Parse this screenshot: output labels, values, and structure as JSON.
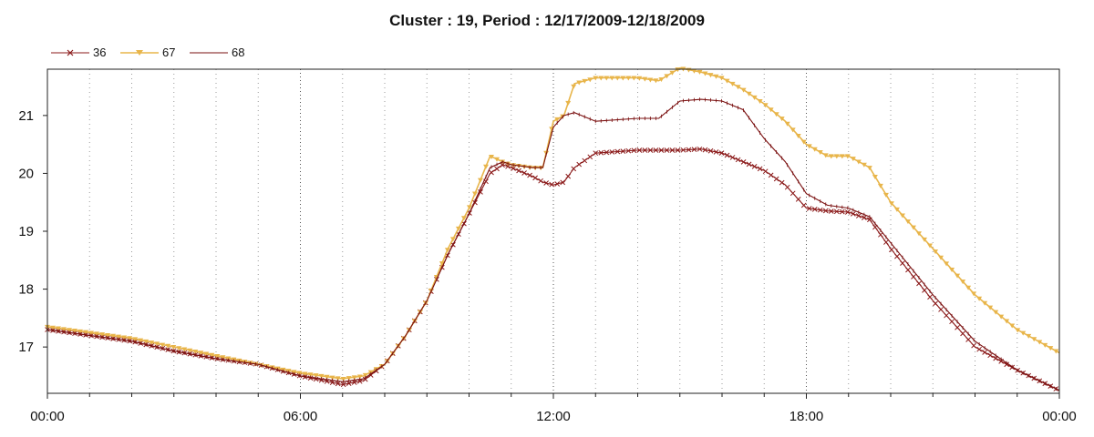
{
  "chart_data": {
    "type": "line",
    "title": "Cluster : 19, Period : 12/17/2009-12/18/2009",
    "xlabel": "",
    "ylabel": "",
    "x_unit": "hours",
    "xlim": [
      0,
      24
    ],
    "ylim": [
      16.2,
      21.8
    ],
    "x_ticks": [
      0,
      6,
      12,
      18,
      24
    ],
    "x_tick_labels": [
      "00:00",
      "06:00",
      "12:00",
      "18:00",
      "00:00"
    ],
    "y_ticks": [
      17,
      18,
      19,
      20,
      21
    ],
    "y_tick_labels": [
      "17",
      "18",
      "19",
      "20",
      "21"
    ],
    "grid": "vertical dotted lines at each hour",
    "legend_position": "top-left",
    "series": [
      {
        "name": "36",
        "color": "#8b1a1a",
        "marker": "x",
        "points": [
          [
            0,
            17.3
          ],
          [
            1,
            17.2
          ],
          [
            2,
            17.1
          ],
          [
            3,
            16.93
          ],
          [
            4,
            16.8
          ],
          [
            5,
            16.7
          ],
          [
            6,
            16.5
          ],
          [
            7,
            16.35
          ],
          [
            7.5,
            16.42
          ],
          [
            8,
            16.7
          ],
          [
            8.5,
            17.2
          ],
          [
            9,
            17.8
          ],
          [
            9.5,
            18.6
          ],
          [
            10,
            19.3
          ],
          [
            10.5,
            20.0
          ],
          [
            10.8,
            20.15
          ],
          [
            11,
            20.1
          ],
          [
            11.5,
            19.95
          ],
          [
            11.75,
            19.85
          ],
          [
            12,
            19.8
          ],
          [
            12.25,
            19.85
          ],
          [
            12.5,
            20.1
          ],
          [
            13,
            20.35
          ],
          [
            14,
            20.4
          ],
          [
            15,
            20.4
          ],
          [
            15.5,
            20.42
          ],
          [
            16,
            20.35
          ],
          [
            17,
            20.05
          ],
          [
            17.5,
            19.8
          ],
          [
            18,
            19.4
          ],
          [
            18.5,
            19.35
          ],
          [
            19,
            19.33
          ],
          [
            19.5,
            19.2
          ],
          [
            20,
            18.7
          ],
          [
            21,
            17.8
          ],
          [
            22,
            17.0
          ],
          [
            23,
            16.6
          ],
          [
            24,
            16.25
          ]
        ]
      },
      {
        "name": "67",
        "color": "#e8b54a",
        "marker": "triangle-down",
        "points": [
          [
            0,
            17.35
          ],
          [
            1,
            17.25
          ],
          [
            2,
            17.15
          ],
          [
            3,
            17.0
          ],
          [
            4,
            16.85
          ],
          [
            5,
            16.7
          ],
          [
            6,
            16.55
          ],
          [
            7,
            16.45
          ],
          [
            7.5,
            16.5
          ],
          [
            8,
            16.7
          ],
          [
            8.5,
            17.2
          ],
          [
            9,
            17.8
          ],
          [
            9.5,
            18.7
          ],
          [
            10,
            19.4
          ],
          [
            10.5,
            20.3
          ],
          [
            10.8,
            20.2
          ],
          [
            11,
            20.15
          ],
          [
            11.5,
            20.1
          ],
          [
            11.75,
            20.1
          ],
          [
            12,
            20.9
          ],
          [
            12.25,
            21.0
          ],
          [
            12.5,
            21.55
          ],
          [
            13,
            21.65
          ],
          [
            14,
            21.65
          ],
          [
            14.5,
            21.6
          ],
          [
            15,
            21.82
          ],
          [
            15.5,
            21.75
          ],
          [
            16,
            21.65
          ],
          [
            16.5,
            21.45
          ],
          [
            17,
            21.2
          ],
          [
            17.5,
            20.9
          ],
          [
            18,
            20.5
          ],
          [
            18.5,
            20.3
          ],
          [
            19,
            20.3
          ],
          [
            19.5,
            20.1
          ],
          [
            20,
            19.5
          ],
          [
            21,
            18.7
          ],
          [
            22,
            17.9
          ],
          [
            23,
            17.3
          ],
          [
            24,
            16.9
          ]
        ]
      },
      {
        "name": "68",
        "color": "#7a1010",
        "marker": "line",
        "points": [
          [
            0,
            17.3
          ],
          [
            1,
            17.2
          ],
          [
            2,
            17.1
          ],
          [
            3,
            16.93
          ],
          [
            4,
            16.8
          ],
          [
            5,
            16.7
          ],
          [
            6,
            16.5
          ],
          [
            7,
            16.4
          ],
          [
            7.5,
            16.45
          ],
          [
            8,
            16.7
          ],
          [
            8.5,
            17.2
          ],
          [
            9,
            17.8
          ],
          [
            9.5,
            18.6
          ],
          [
            10,
            19.3
          ],
          [
            10.5,
            20.1
          ],
          [
            10.8,
            20.2
          ],
          [
            11,
            20.15
          ],
          [
            11.5,
            20.1
          ],
          [
            11.75,
            20.1
          ],
          [
            12,
            20.8
          ],
          [
            12.25,
            21.0
          ],
          [
            12.5,
            21.05
          ],
          [
            13,
            20.9
          ],
          [
            14,
            20.95
          ],
          [
            14.5,
            20.95
          ],
          [
            15,
            21.25
          ],
          [
            15.5,
            21.28
          ],
          [
            16,
            21.25
          ],
          [
            16.5,
            21.1
          ],
          [
            17,
            20.6
          ],
          [
            17.5,
            20.2
          ],
          [
            18,
            19.65
          ],
          [
            18.5,
            19.45
          ],
          [
            19,
            19.4
          ],
          [
            19.5,
            19.25
          ],
          [
            20,
            18.8
          ],
          [
            21,
            17.9
          ],
          [
            22,
            17.1
          ],
          [
            23,
            16.6
          ],
          [
            24,
            16.25
          ]
        ]
      }
    ]
  }
}
